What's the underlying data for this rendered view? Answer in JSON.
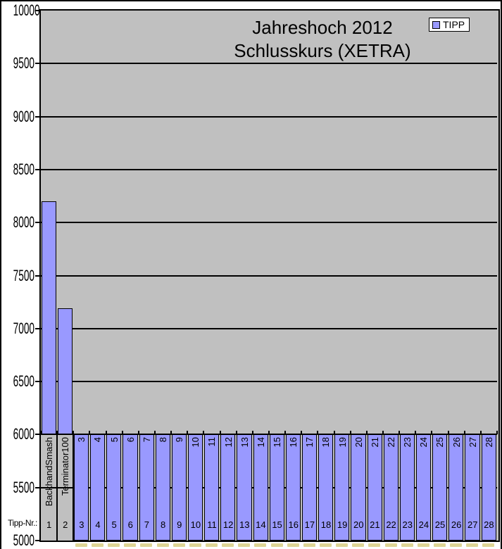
{
  "colors": {
    "bar_fill": "#9999FF",
    "bar_border": "#000000",
    "plot_background": "#C0C0C0",
    "chart_background": "#FFFFFF",
    "grid_line": "#000000",
    "text": "#000000"
  },
  "chart_data": {
    "type": "bar",
    "title": "Jahreshoch 2012 Schlusskurs (XETRA)",
    "title_lines": [
      "Jahreshoch 2012",
      "Schlusskurs (XETRA)"
    ],
    "series_name": "TIPP",
    "xlabel": "Tipp-Nr.:",
    "ylabel": "",
    "ylim": [
      5000,
      10000
    ],
    "ytick_step": 500,
    "yticks": [
      10000,
      9500,
      9000,
      8500,
      8000,
      7500,
      7000,
      6500,
      6000,
      5500,
      5000
    ],
    "grid": true,
    "legend_position": "top-right",
    "category_axis_crosses_at": 6000,
    "no_value_render": "categories without a value render as a full column from the 6000 axis line down to the plot bottom (5000)",
    "categories": [
      {
        "tipp_nr": 1,
        "name": "BackhandSmash",
        "value": 8200
      },
      {
        "tipp_nr": 2,
        "name": "Terminator100",
        "value": 7190
      },
      {
        "tipp_nr": 3,
        "name": "3",
        "value": null
      },
      {
        "tipp_nr": 4,
        "name": "4",
        "value": null
      },
      {
        "tipp_nr": 5,
        "name": "5",
        "value": null
      },
      {
        "tipp_nr": 6,
        "name": "6",
        "value": null
      },
      {
        "tipp_nr": 7,
        "name": "7",
        "value": null
      },
      {
        "tipp_nr": 8,
        "name": "8",
        "value": null
      },
      {
        "tipp_nr": 9,
        "name": "9",
        "value": null
      },
      {
        "tipp_nr": 10,
        "name": "10",
        "value": null
      },
      {
        "tipp_nr": 11,
        "name": "11",
        "value": null
      },
      {
        "tipp_nr": 12,
        "name": "12",
        "value": null
      },
      {
        "tipp_nr": 13,
        "name": "13",
        "value": null
      },
      {
        "tipp_nr": 14,
        "name": "14",
        "value": null
      },
      {
        "tipp_nr": 15,
        "name": "15",
        "value": null
      },
      {
        "tipp_nr": 16,
        "name": "16",
        "value": null
      },
      {
        "tipp_nr": 17,
        "name": "17",
        "value": null
      },
      {
        "tipp_nr": 18,
        "name": "18",
        "value": null
      },
      {
        "tipp_nr": 19,
        "name": "19",
        "value": null
      },
      {
        "tipp_nr": 20,
        "name": "20",
        "value": null
      },
      {
        "tipp_nr": 21,
        "name": "21",
        "value": null
      },
      {
        "tipp_nr": 22,
        "name": "22",
        "value": null
      },
      {
        "tipp_nr": 23,
        "name": "23",
        "value": null
      },
      {
        "tipp_nr": 24,
        "name": "24",
        "value": null
      },
      {
        "tipp_nr": 25,
        "name": "25",
        "value": null
      },
      {
        "tipp_nr": 26,
        "name": "26",
        "value": null
      },
      {
        "tipp_nr": 27,
        "name": "27",
        "value": null
      },
      {
        "tipp_nr": 28,
        "name": "28",
        "value": null
      }
    ]
  }
}
